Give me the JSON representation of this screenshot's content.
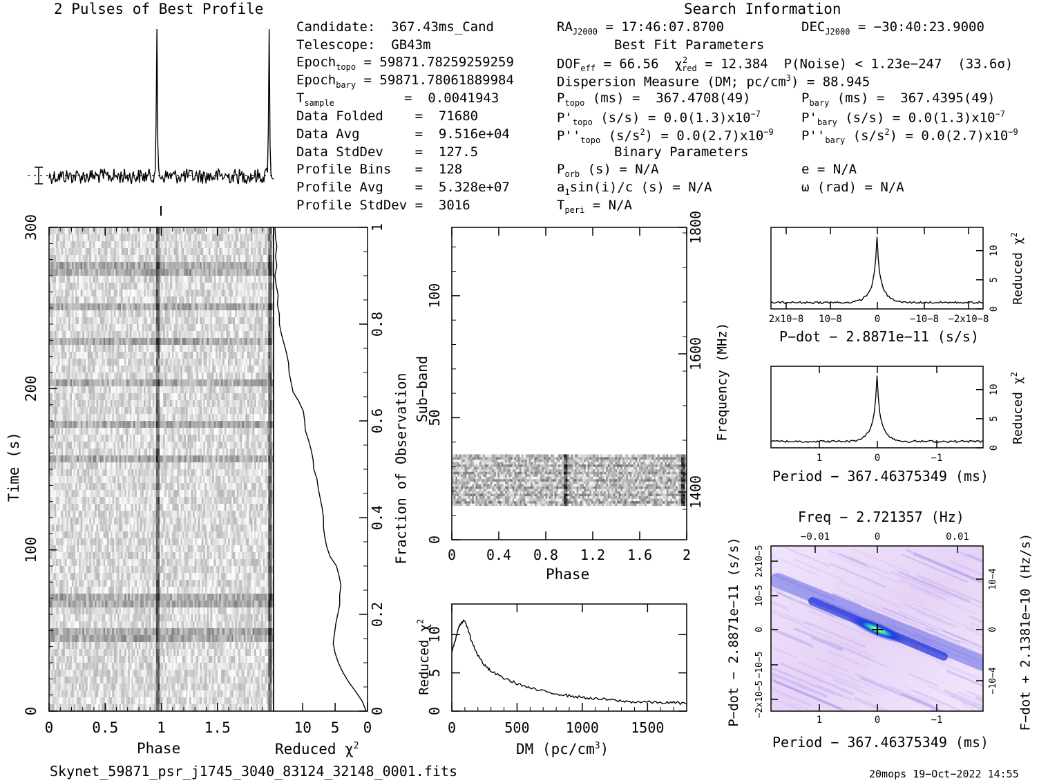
{
  "profile_title": "2 Pulses of Best Profile",
  "search_title": "Search Information",
  "info": {
    "candidate": "Candidate:  367.43ms_Cand",
    "telescope": "Telescope:  GB43m",
    "epoch_topo": "Epoch",
    "epoch_topo_sub": "topo",
    "epoch_topo_val": " = 59871.78259259259",
    "epoch_bary": "Epoch",
    "epoch_bary_sub": "bary",
    "epoch_bary_val": " = 59871.78061889984",
    "t_sample": "T",
    "t_sample_sub": "sample",
    "t_sample_val": "=  0.0041943",
    "data_folded": "Data Folded    =  71680",
    "data_avg": "Data Avg       =  9.516e+04",
    "data_stddev": "Data StdDev    =  127.5",
    "profile_bins": "Profile Bins   =  128",
    "profile_avg": "Profile Avg    =  5.328e+07",
    "profile_stddev": "Profile StdDev =  3016"
  },
  "search": {
    "ra": "RA",
    "ra_sub": "J2000",
    "ra_val": " = 17:46:07.8700",
    "dec": "DEC",
    "dec_sub": "J2000",
    "dec_val": " = −30:40:23.9000",
    "best_fit_title": "Best Fit Parameters",
    "dof": "DOF",
    "dof_sub": "eff",
    "dof_val": " = 66.56  χ",
    "chi_sup": "2",
    "chi_sub": "red",
    "chi_val": " = 12.384  P(Noise) < 1.23e−247  (33.6σ)",
    "dm_line": "Dispersion Measure (DM; pc/cm",
    "dm_sup": "3",
    "dm_val": ") = 88.945",
    "ptopo": "P",
    "ptopo_sub": "topo",
    "ptopo_val": " (ms) =  367.4708(49)",
    "pbary": "P",
    "pbary_sub": "bary",
    "pbary_val": " (ms) =  367.4395(49)",
    "pdtopo": "P'",
    "pdtopo_sub": "topo",
    "pdtopo_val": " (s/s) = 0.0(1.3)x10",
    "pdtopo_exp": "−7",
    "pdbary": "P'",
    "pdbary_sub": "bary",
    "pdbary_val": " (s/s) = 0.0(1.3)x10",
    "pdbary_exp": "−7",
    "pddtopo": "P''",
    "pddtopo_sub": "topo",
    "pddtopo_val": " (s/s",
    "pddtopo_sup2": "2",
    "pddtopo_val2": ") = 0.0(2.7)x10",
    "pddtopo_exp": "−9",
    "pddbary": "P''",
    "pddbary_sub": "bary",
    "pddbary_val": " (s/s",
    "pddbary_sup2": "2",
    "pddbary_val2": ") = 0.0(2.7)x10",
    "pddbary_exp": "−9",
    "binary_title": "Binary Parameters",
    "porb": "P",
    "porb_sub": "orb",
    "porb_val": " (s) = N/A",
    "a1": "a",
    "a1_sub": "1",
    "a1_val": "sin(i)/c (s) = N/A",
    "tperi": "T",
    "tperi_sub": "peri",
    "tperi_val": " = N/A",
    "e": "e = N/A",
    "omega": "ω (rad) = N/A"
  },
  "footer": {
    "filename": "Skynet_59871_psr_j1745_3040_83124_32148_0001.fits",
    "stamp": "20mops 19−Oct−2022 14:55"
  },
  "labels": {
    "phase": "Phase",
    "time": "Time (s)",
    "reduced_chi": "Reduced χ",
    "chi_sup": "2",
    "fraction_obs": "Fraction of Observation",
    "subband": "Sub−band",
    "frequency": "Frequency (MHz)",
    "dm_axis": "DM (pc/cm",
    "dm_axis_sup": "3",
    "dm_axis_close": ")",
    "pdot_label": "P−dot − 2.8871e−11 (s/s)",
    "period_label": "Period − 367.46375349 (ms)",
    "freq_label": "Freq − 2.721357 (Hz)",
    "fdot_label": "F−dot + 2.1381e−10 (Hz/s)",
    "pdot_side": "P−dot − 2.8871e−11 (s/s)"
  },
  "colors": {
    "ink": "#000000",
    "grey_dark": "#3a3a3a",
    "grey_light": "#f4f4f4",
    "ppdot_bg": "#e6d7f4",
    "ppdot_mid": "#9a8cf0",
    "ppdot_deep": "#2a3bd8",
    "ppdot_peak": "#29d6c4"
  },
  "chart_data": [
    {
      "type": "line",
      "name": "pulse-profile",
      "title": "2 Pulses of Best Profile",
      "x": "phase 0..2",
      "peak_phase": [
        0.96,
        1.96
      ],
      "baseline": 0
    },
    {
      "type": "heatmap",
      "name": "time-vs-phase",
      "xlabel": "Phase",
      "ylabel": "Time (s)",
      "xlim": [
        0,
        2
      ],
      "ylim": [
        0,
        300
      ],
      "x_ticks": [
        "0",
        "0.5",
        "1",
        "1.5"
      ],
      "y_ticks": [
        "0",
        "100",
        "200",
        "300"
      ]
    },
    {
      "type": "line",
      "name": "reduced-chi2-vs-fraction",
      "xlabel": "Reduced χ2",
      "ylabel": "Fraction of Observation",
      "x_ticks": [
        "10",
        "5",
        "0"
      ],
      "y_ticks": [
        "0",
        "0.2",
        "0.4",
        "0.6",
        "0.8",
        "1"
      ],
      "fraction": [
        0.0,
        0.02,
        0.04,
        0.06,
        0.08,
        0.1,
        0.12,
        0.14,
        0.16,
        0.18,
        0.2,
        0.22,
        0.24,
        0.26,
        0.28,
        0.3,
        0.32,
        0.34,
        0.36,
        0.38,
        0.4,
        0.42,
        0.44,
        0.46,
        0.48,
        0.5,
        0.52,
        0.54,
        0.56,
        0.58,
        0.6,
        0.62,
        0.64,
        0.66,
        0.68,
        0.7,
        0.72,
        0.74,
        0.76,
        0.78,
        0.8,
        0.82,
        0.84,
        0.86,
        0.88,
        0.9,
        0.92,
        0.94,
        0.96,
        0.98,
        1.0
      ],
      "chi2": [
        0.2,
        0.8,
        1.8,
        2.9,
        3.8,
        4.5,
        5.0,
        5.3,
        5.1,
        4.9,
        4.6,
        4.3,
        4.3,
        4.1,
        4.4,
        4.8,
        5.8,
        6.3,
        6.6,
        6.8,
        6.8,
        7.0,
        7.3,
        7.6,
        7.8,
        8.3,
        8.4,
        8.7,
        9.1,
        9.6,
        9.7,
        9.9,
        10.6,
        11.5,
        11.8,
        12.1,
        12.2,
        12.5,
        12.9,
        13.3,
        13.6,
        13.6,
        13.9,
        13.8,
        14.1,
        14.3,
        14.0,
        14.2,
        14.0,
        14.2,
        14.3
      ],
      "xlim": [
        14.5,
        0
      ]
    },
    {
      "type": "heatmap",
      "name": "subband-vs-phase",
      "xlabel": "Phase",
      "ylabel": "Sub−band",
      "y2label": "Frequency (MHz)",
      "xlim": [
        0,
        2
      ],
      "ylim": [
        0,
        128
      ],
      "x_ticks": [
        "0",
        "0.4",
        "0.8",
        "1.2",
        "1.6",
        "2"
      ],
      "y_ticks": [
        "0",
        "50",
        "100"
      ],
      "y2_ticks": [
        "1400",
        "1600",
        "1800"
      ],
      "signal_band": [
        14,
        35
      ],
      "pulse_phase": [
        0.96,
        1.96
      ]
    },
    {
      "type": "line",
      "name": "dm-curve",
      "xlabel": "DM (pc/cm3)",
      "ylabel": "Reduced χ2",
      "xlim": [
        0,
        1800
      ],
      "ylim": [
        0,
        14
      ],
      "x_ticks": [
        "0",
        "500",
        "1000",
        "1500"
      ],
      "y_ticks": [
        "0",
        "5",
        "10"
      ],
      "x": [
        0,
        30,
        60,
        90,
        120,
        150,
        200,
        250,
        300,
        400,
        500,
        600,
        700,
        800,
        900,
        1000,
        1100,
        1200,
        1300,
        1400,
        1500,
        1600,
        1700,
        1800
      ],
      "y": [
        7.8,
        9.5,
        11.2,
        11.9,
        11.0,
        9.2,
        7.3,
        6.0,
        5.2,
        4.3,
        3.6,
        3.0,
        2.6,
        2.3,
        2.0,
        1.8,
        1.6,
        1.5,
        1.3,
        1.2,
        1.2,
        1.1,
        1.1,
        1.0
      ]
    },
    {
      "type": "line",
      "name": "pdot-curve",
      "xlabel": "P−dot − 2.8871e−11 (s/s)",
      "ylabel": "Reduced χ2",
      "x_ticks": [
        "2x10−8",
        "10−8",
        "0",
        "−10−8",
        "−2x10−8"
      ],
      "y_ticks": [
        "0",
        "5",
        "10"
      ],
      "peak_chi2": 12.4
    },
    {
      "type": "line",
      "name": "period-curve",
      "xlabel": "Period − 367.46375349 (ms)",
      "ylabel": "Reduced χ2",
      "x_ticks": [
        "1",
        "0",
        "−1"
      ],
      "y_ticks": [
        "0",
        "5",
        "10"
      ],
      "peak_chi2": 12.4
    },
    {
      "type": "heatmap",
      "name": "p-pdot-plane",
      "xlabel": "Period − 367.46375349 (ms)",
      "x2label": "Freq − 2.721357 (Hz)",
      "ylabel": "P−dot − 2.8871e−11 (s/s)",
      "y2label": "F−dot + 2.1381e−10 (Hz/s)",
      "x_ticks": [
        "1",
        "0",
        "−1"
      ],
      "x2_ticks": [
        "−0.01",
        "0",
        "0.01"
      ],
      "y_ticks": [
        "2x10−5",
        "10−5",
        "0",
        "−10−5",
        "−2x10−5"
      ],
      "y2_ticks": [
        "10−4",
        "0",
        "−10−4"
      ]
    }
  ]
}
